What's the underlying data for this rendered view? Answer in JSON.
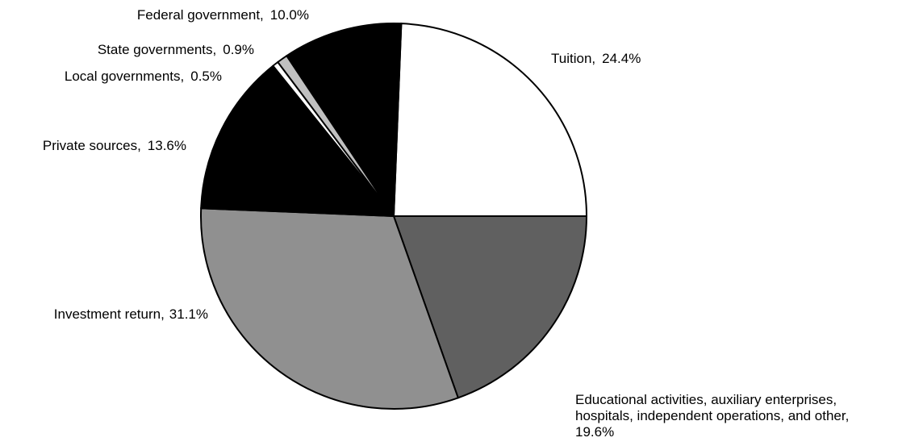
{
  "chart_data": {
    "type": "pie",
    "title": "",
    "slices": [
      {
        "label": "Tuition,",
        "value_label": "24.4%",
        "value": 24.4,
        "color": "#ffffff"
      },
      {
        "label": "Educational activities, auxiliary enterprises, hospitals, independent operations, and other,",
        "value_label": "19.6%",
        "value": 19.6,
        "color": "#606060"
      },
      {
        "label": "Investment return,",
        "value_label": "31.1%",
        "value": 31.1,
        "color": "#909090"
      },
      {
        "label": "Private sources,",
        "value_label": "13.6%",
        "value": 13.6,
        "color": "#000000"
      },
      {
        "label": "Local governments,",
        "value_label": "0.5%",
        "value": 0.5,
        "color": "#ffffff"
      },
      {
        "label": "State governments,",
        "value_label": "0.9%",
        "value": 0.9,
        "color": "#c0c0c0"
      },
      {
        "label": "Federal government,",
        "value_label": "10.0%",
        "value": 10.0,
        "color": "#000000"
      }
    ]
  }
}
